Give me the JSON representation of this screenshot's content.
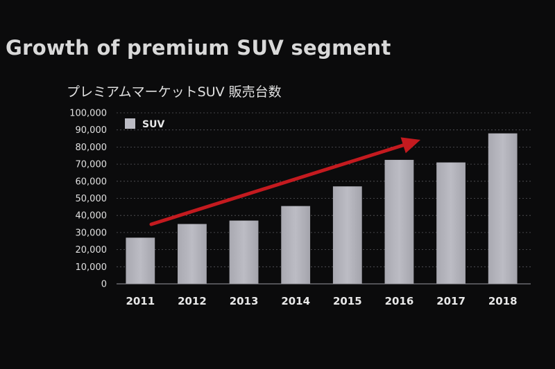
{
  "slide": {
    "title": "Growth of premium SUV segment"
  },
  "colors": {
    "background": "#0b0b0c",
    "bar": "#bcbcc4",
    "arrow": "#c41a1f",
    "text": "#e6e6e6"
  },
  "chart_data": {
    "type": "bar",
    "title": "プレミアムマーケットSUV 販売台数",
    "xlabel": "",
    "ylabel": "",
    "categories": [
      "2011",
      "2012",
      "2013",
      "2014",
      "2015",
      "2016",
      "2017",
      "2018"
    ],
    "series": [
      {
        "name": "SUV",
        "values": [
          27000,
          35000,
          37000,
          45500,
          57000,
          72500,
          71000,
          88000
        ]
      }
    ],
    "ylim": [
      0,
      100000
    ],
    "yticks": [
      "0",
      "10,000",
      "20,000",
      "30,000",
      "40,000",
      "50,000",
      "60,000",
      "70,000",
      "80,000",
      "90,000",
      "100,000"
    ],
    "grid": true,
    "legend": "top-left",
    "annotation": "red trend arrow rising from 2011 toward 2016-2017"
  }
}
